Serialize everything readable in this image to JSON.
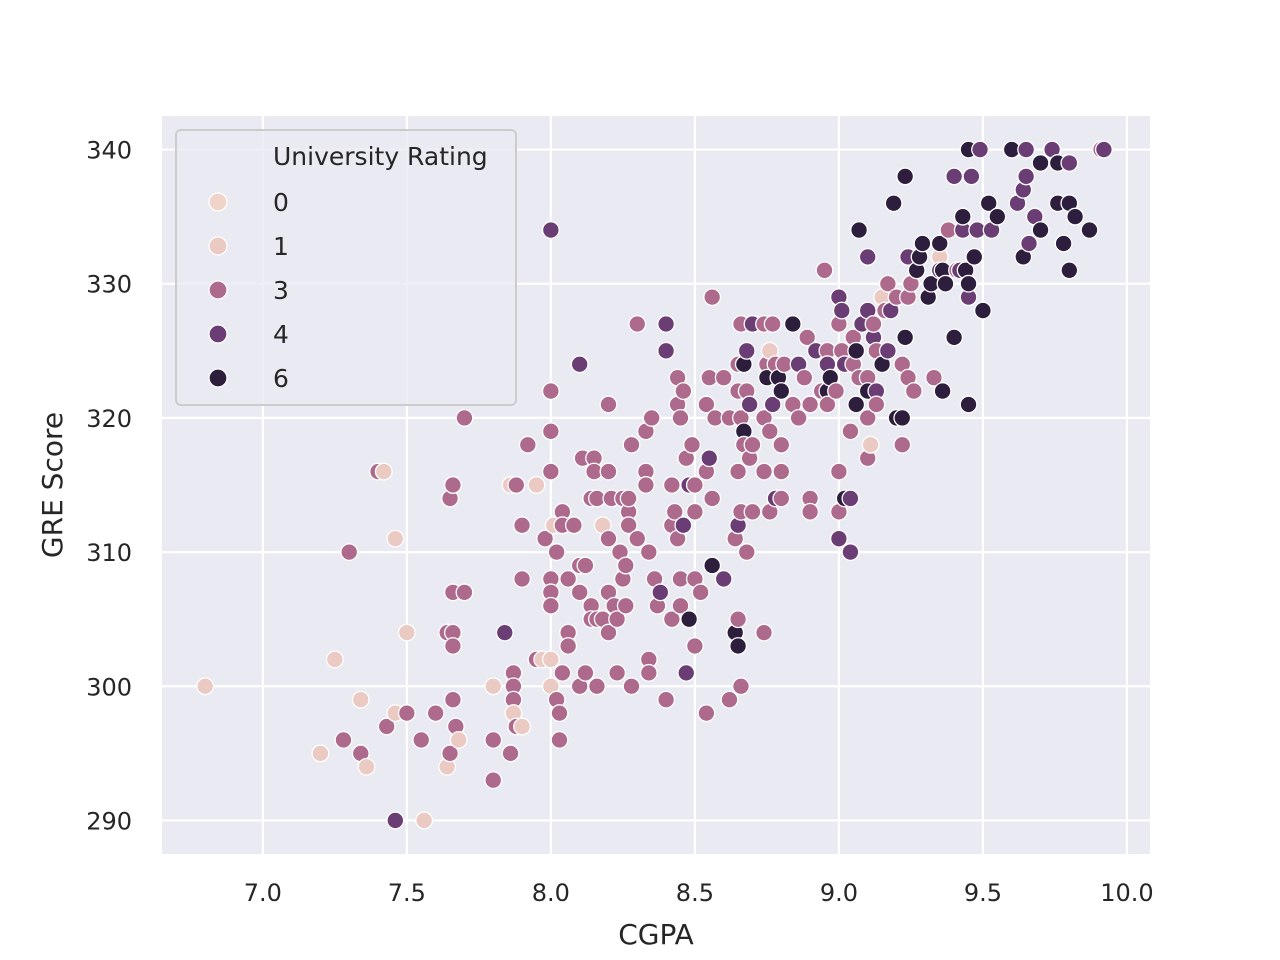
{
  "chart_data": {
    "type": "scatter",
    "xlabel": "CGPA",
    "ylabel": "GRE Score",
    "xlim": [
      6.65,
      10.08
    ],
    "ylim": [
      287.5,
      342.5
    ],
    "xticks": [
      7.0,
      7.5,
      8.0,
      8.5,
      9.0,
      9.5,
      10.0
    ],
    "xtick_labels": [
      "7.0",
      "7.5",
      "8.0",
      "8.5",
      "9.0",
      "9.5",
      "10.0"
    ],
    "yticks": [
      290,
      300,
      310,
      320,
      330,
      340
    ],
    "ytick_labels": [
      "290",
      "300",
      "310",
      "320",
      "330",
      "340"
    ],
    "grid": true,
    "background": "#eaeaf2",
    "legend": {
      "title": "University Rating",
      "placement": "upper-left",
      "entries": [
        {
          "label": "0",
          "rating": 0,
          "color": "#f0d3c9"
        },
        {
          "label": "1",
          "rating": 1,
          "color": "#eacac2"
        },
        {
          "label": "3",
          "rating": 3,
          "color": "#ad6a8d"
        },
        {
          "label": "4",
          "rating": 4,
          "color": "#6a3d74"
        },
        {
          "label": "6",
          "rating": 6,
          "color": "#2d1e3e"
        }
      ]
    },
    "points": [
      [
        6.8,
        300,
        1
      ],
      [
        7.2,
        295,
        1
      ],
      [
        7.25,
        302,
        1
      ],
      [
        7.28,
        296,
        3
      ],
      [
        7.3,
        310,
        3
      ],
      [
        7.34,
        295,
        3
      ],
      [
        7.34,
        299,
        1
      ],
      [
        7.36,
        294,
        1
      ],
      [
        7.4,
        316,
        3
      ],
      [
        7.42,
        316,
        1
      ],
      [
        7.43,
        297,
        3
      ],
      [
        7.46,
        298,
        1
      ],
      [
        7.46,
        311,
        1
      ],
      [
        7.46,
        290,
        4
      ],
      [
        7.5,
        304,
        1
      ],
      [
        7.5,
        298,
        3
      ],
      [
        7.55,
        296,
        3
      ],
      [
        7.56,
        290,
        1
      ],
      [
        7.6,
        298,
        3
      ],
      [
        7.64,
        304,
        3
      ],
      [
        7.64,
        294,
        1
      ],
      [
        7.65,
        314,
        3
      ],
      [
        7.65,
        295,
        3
      ],
      [
        7.66,
        315,
        3
      ],
      [
        7.66,
        307,
        3
      ],
      [
        7.66,
        304,
        3
      ],
      [
        7.66,
        303,
        3
      ],
      [
        7.66,
        299,
        3
      ],
      [
        7.67,
        297,
        3
      ],
      [
        7.68,
        296,
        1
      ],
      [
        7.7,
        307,
        3
      ],
      [
        7.7,
        320,
        3
      ],
      [
        7.8,
        300,
        1
      ],
      [
        7.8,
        293,
        3
      ],
      [
        7.8,
        296,
        3
      ],
      [
        7.84,
        304,
        4
      ],
      [
        7.86,
        315,
        1
      ],
      [
        7.86,
        295,
        3
      ],
      [
        7.87,
        301,
        3
      ],
      [
        7.87,
        300,
        3
      ],
      [
        7.87,
        299,
        3
      ],
      [
        7.87,
        298,
        1
      ],
      [
        7.88,
        297,
        3
      ],
      [
        7.88,
        315,
        3
      ],
      [
        7.9,
        312,
        3
      ],
      [
        7.9,
        308,
        3
      ],
      [
        7.9,
        297,
        1
      ],
      [
        7.92,
        318,
        3
      ],
      [
        7.95,
        315,
        1
      ],
      [
        7.95,
        302,
        3
      ],
      [
        7.97,
        302,
        1
      ],
      [
        7.98,
        311,
        3
      ],
      [
        8.0,
        334,
        4
      ],
      [
        8.0,
        322,
        3
      ],
      [
        8.0,
        319,
        3
      ],
      [
        8.0,
        316,
        3
      ],
      [
        8.0,
        308,
        3
      ],
      [
        8.0,
        307,
        3
      ],
      [
        8.0,
        306,
        3
      ],
      [
        8.0,
        302,
        1
      ],
      [
        8.0,
        300,
        1
      ],
      [
        8.01,
        312,
        1
      ],
      [
        8.02,
        310,
        3
      ],
      [
        8.02,
        299,
        3
      ],
      [
        8.03,
        298,
        3
      ],
      [
        8.03,
        296,
        3
      ],
      [
        8.04,
        313,
        3
      ],
      [
        8.04,
        312,
        3
      ],
      [
        8.04,
        301,
        3
      ],
      [
        8.06,
        304,
        3
      ],
      [
        8.06,
        303,
        3
      ],
      [
        8.06,
        308,
        3
      ],
      [
        8.08,
        312,
        3
      ],
      [
        8.1,
        324,
        4
      ],
      [
        8.1,
        309,
        3
      ],
      [
        8.1,
        307,
        3
      ],
      [
        8.1,
        300,
        3
      ],
      [
        8.11,
        317,
        3
      ],
      [
        8.12,
        309,
        3
      ],
      [
        8.12,
        301,
        3
      ],
      [
        8.14,
        314,
        3
      ],
      [
        8.14,
        306,
        3
      ],
      [
        8.14,
        305,
        3
      ],
      [
        8.15,
        317,
        3
      ],
      [
        8.15,
        316,
        3
      ],
      [
        8.16,
        314,
        3
      ],
      [
        8.16,
        305,
        3
      ],
      [
        8.16,
        300,
        3
      ],
      [
        8.18,
        312,
        1
      ],
      [
        8.18,
        305,
        3
      ],
      [
        8.2,
        321,
        3
      ],
      [
        8.2,
        316,
        3
      ],
      [
        8.2,
        311,
        3
      ],
      [
        8.2,
        307,
        3
      ],
      [
        8.2,
        304,
        3
      ],
      [
        8.21,
        314,
        3
      ],
      [
        8.22,
        306,
        3
      ],
      [
        8.23,
        301,
        3
      ],
      [
        8.23,
        305,
        3
      ],
      [
        8.24,
        310,
        3
      ],
      [
        8.25,
        308,
        3
      ],
      [
        8.25,
        314,
        3
      ],
      [
        8.26,
        309,
        3
      ],
      [
        8.26,
        306,
        3
      ],
      [
        8.27,
        313,
        3
      ],
      [
        8.27,
        312,
        3
      ],
      [
        8.27,
        314,
        3
      ],
      [
        8.28,
        318,
        3
      ],
      [
        8.28,
        300,
        3
      ],
      [
        8.3,
        327,
        3
      ],
      [
        8.3,
        311,
        3
      ],
      [
        8.33,
        316,
        3
      ],
      [
        8.33,
        319,
        3
      ],
      [
        8.33,
        315,
        3
      ],
      [
        8.34,
        310,
        3
      ],
      [
        8.34,
        302,
        3
      ],
      [
        8.34,
        301,
        3
      ],
      [
        8.35,
        320,
        3
      ],
      [
        8.36,
        308,
        3
      ],
      [
        8.37,
        306,
        3
      ],
      [
        8.38,
        307,
        4
      ],
      [
        8.4,
        327,
        4
      ],
      [
        8.4,
        325,
        4
      ],
      [
        8.4,
        299,
        3
      ],
      [
        8.42,
        315,
        3
      ],
      [
        8.42,
        312,
        3
      ],
      [
        8.42,
        305,
        3
      ],
      [
        8.43,
        313,
        3
      ],
      [
        8.44,
        323,
        3
      ],
      [
        8.44,
        321,
        3
      ],
      [
        8.44,
        311,
        3
      ],
      [
        8.45,
        320,
        3
      ],
      [
        8.45,
        306,
        3
      ],
      [
        8.45,
        308,
        3
      ],
      [
        8.46,
        322,
        3
      ],
      [
        8.46,
        312,
        4
      ],
      [
        8.47,
        317,
        3
      ],
      [
        8.47,
        301,
        4
      ],
      [
        8.48,
        305,
        6
      ],
      [
        8.48,
        315,
        4
      ],
      [
        8.49,
        318,
        3
      ],
      [
        8.5,
        313,
        3
      ],
      [
        8.5,
        308,
        3
      ],
      [
        8.5,
        303,
        3
      ],
      [
        8.5,
        315,
        3
      ],
      [
        8.52,
        307,
        3
      ],
      [
        8.54,
        321,
        3
      ],
      [
        8.54,
        316,
        3
      ],
      [
        8.54,
        298,
        3
      ],
      [
        8.55,
        323,
        3
      ],
      [
        8.55,
        317,
        4
      ],
      [
        8.56,
        329,
        3
      ],
      [
        8.56,
        314,
        3
      ],
      [
        8.56,
        309,
        6
      ],
      [
        8.57,
        320,
        3
      ],
      [
        8.6,
        323,
        3
      ],
      [
        8.6,
        308,
        4
      ],
      [
        8.62,
        320,
        3
      ],
      [
        8.62,
        299,
        3
      ],
      [
        8.64,
        304,
        6
      ],
      [
        8.64,
        311,
        3
      ],
      [
        8.65,
        324,
        3
      ],
      [
        8.65,
        322,
        3
      ],
      [
        8.65,
        316,
        3
      ],
      [
        8.65,
        312,
        4
      ],
      [
        8.65,
        305,
        3
      ],
      [
        8.65,
        303,
        6
      ],
      [
        8.66,
        327,
        3
      ],
      [
        8.66,
        320,
        3
      ],
      [
        8.66,
        313,
        3
      ],
      [
        8.66,
        300,
        3
      ],
      [
        8.67,
        324,
        6
      ],
      [
        8.67,
        319,
        6
      ],
      [
        8.67,
        318,
        3
      ],
      [
        8.68,
        325,
        4
      ],
      [
        8.68,
        322,
        3
      ],
      [
        8.68,
        310,
        3
      ],
      [
        8.69,
        321,
        4
      ],
      [
        8.69,
        317,
        3
      ],
      [
        8.7,
        313,
        3
      ],
      [
        8.7,
        327,
        4
      ],
      [
        8.7,
        318,
        3
      ],
      [
        8.74,
        327,
        3
      ],
      [
        8.74,
        320,
        3
      ],
      [
        8.74,
        316,
        3
      ],
      [
        8.74,
        304,
        3
      ],
      [
        8.75,
        324,
        3
      ],
      [
        8.75,
        323,
        6
      ],
      [
        8.76,
        325,
        1
      ],
      [
        8.76,
        313,
        3
      ],
      [
        8.76,
        319,
        3
      ],
      [
        8.77,
        327,
        3
      ],
      [
        8.77,
        321,
        4
      ],
      [
        8.78,
        314,
        4
      ],
      [
        8.78,
        324,
        3
      ],
      [
        8.79,
        323,
        6
      ],
      [
        8.8,
        322,
        6
      ],
      [
        8.8,
        318,
        3
      ],
      [
        8.8,
        316,
        3
      ],
      [
        8.8,
        314,
        3
      ],
      [
        8.81,
        324,
        3
      ],
      [
        8.84,
        327,
        6
      ],
      [
        8.84,
        321,
        3
      ],
      [
        8.86,
        320,
        3
      ],
      [
        8.86,
        324,
        4
      ],
      [
        8.88,
        323,
        3
      ],
      [
        8.89,
        326,
        3
      ],
      [
        8.9,
        321,
        3
      ],
      [
        8.9,
        314,
        3
      ],
      [
        8.9,
        313,
        3
      ],
      [
        8.92,
        325,
        4
      ],
      [
        8.94,
        322,
        3
      ],
      [
        8.95,
        331,
        3
      ],
      [
        8.96,
        325,
        3
      ],
      [
        8.96,
        322,
        6
      ],
      [
        8.96,
        321,
        3
      ],
      [
        8.96,
        324,
        4
      ],
      [
        8.97,
        323,
        6
      ],
      [
        8.99,
        322,
        3
      ],
      [
        9.0,
        327,
        3
      ],
      [
        9.0,
        329,
        4
      ],
      [
        9.0,
        316,
        3
      ],
      [
        9.0,
        313,
        3
      ],
      [
        9.0,
        311,
        4
      ],
      [
        9.01,
        328,
        4
      ],
      [
        9.01,
        325,
        3
      ],
      [
        9.02,
        324,
        4
      ],
      [
        9.02,
        314,
        6
      ],
      [
        9.04,
        314,
        4
      ],
      [
        9.04,
        310,
        4
      ],
      [
        9.04,
        319,
        3
      ],
      [
        9.05,
        324,
        3
      ],
      [
        9.05,
        326,
        3
      ],
      [
        9.06,
        325,
        6
      ],
      [
        9.06,
        321,
        6
      ],
      [
        9.07,
        334,
        6
      ],
      [
        9.07,
        323,
        3
      ],
      [
        9.08,
        327,
        4
      ],
      [
        9.1,
        332,
        4
      ],
      [
        9.1,
        328,
        4
      ],
      [
        9.1,
        323,
        3
      ],
      [
        9.1,
        322,
        6
      ],
      [
        9.1,
        320,
        3
      ],
      [
        9.1,
        317,
        3
      ],
      [
        9.11,
        318,
        1
      ],
      [
        9.12,
        326,
        4
      ],
      [
        9.12,
        327,
        3
      ],
      [
        9.13,
        325,
        3
      ],
      [
        9.13,
        322,
        4
      ],
      [
        9.13,
        321,
        3
      ],
      [
        9.15,
        324,
        6
      ],
      [
        9.15,
        329,
        1
      ],
      [
        9.16,
        328,
        3
      ],
      [
        9.17,
        330,
        3
      ],
      [
        9.17,
        325,
        4
      ],
      [
        9.18,
        328,
        4
      ],
      [
        9.19,
        336,
        6
      ],
      [
        9.2,
        329,
        3
      ],
      [
        9.2,
        320,
        6
      ],
      [
        9.22,
        320,
        6
      ],
      [
        9.22,
        318,
        3
      ],
      [
        9.22,
        324,
        3
      ],
      [
        9.23,
        338,
        6
      ],
      [
        9.23,
        326,
        6
      ],
      [
        9.24,
        323,
        3
      ],
      [
        9.24,
        332,
        4
      ],
      [
        9.24,
        329,
        3
      ],
      [
        9.25,
        330,
        3
      ],
      [
        9.26,
        322,
        3
      ],
      [
        9.27,
        331,
        6
      ],
      [
        9.28,
        332,
        6
      ],
      [
        9.29,
        333,
        6
      ],
      [
        9.31,
        329,
        6
      ],
      [
        9.32,
        330,
        6
      ],
      [
        9.33,
        323,
        3
      ],
      [
        9.35,
        332,
        1
      ],
      [
        9.35,
        331,
        4
      ],
      [
        9.35,
        333,
        6
      ],
      [
        9.36,
        331,
        6
      ],
      [
        9.36,
        322,
        6
      ],
      [
        9.37,
        330,
        6
      ],
      [
        9.38,
        334,
        3
      ],
      [
        9.4,
        338,
        4
      ],
      [
        9.4,
        326,
        6
      ],
      [
        9.41,
        331,
        3
      ],
      [
        9.42,
        331,
        4
      ],
      [
        9.43,
        334,
        4
      ],
      [
        9.43,
        335,
        6
      ],
      [
        9.44,
        331,
        6
      ],
      [
        9.45,
        340,
        6
      ],
      [
        9.45,
        321,
        6
      ],
      [
        9.45,
        329,
        4
      ],
      [
        9.45,
        330,
        6
      ],
      [
        9.46,
        338,
        4
      ],
      [
        9.47,
        332,
        6
      ],
      [
        9.48,
        334,
        4
      ],
      [
        9.49,
        340,
        4
      ],
      [
        9.5,
        328,
        6
      ],
      [
        9.52,
        336,
        6
      ],
      [
        9.53,
        334,
        4
      ],
      [
        9.55,
        335,
        6
      ],
      [
        9.6,
        340,
        6
      ],
      [
        9.62,
        336,
        4
      ],
      [
        9.64,
        332,
        6
      ],
      [
        9.64,
        337,
        4
      ],
      [
        9.65,
        338,
        4
      ],
      [
        9.65,
        340,
        4
      ],
      [
        9.66,
        333,
        4
      ],
      [
        9.68,
        335,
        4
      ],
      [
        9.7,
        339,
        6
      ],
      [
        9.7,
        334,
        6
      ],
      [
        9.74,
        340,
        4
      ],
      [
        9.76,
        336,
        6
      ],
      [
        9.76,
        339,
        6
      ],
      [
        9.78,
        333,
        6
      ],
      [
        9.8,
        339,
        4
      ],
      [
        9.8,
        336,
        6
      ],
      [
        9.8,
        331,
        6
      ],
      [
        9.82,
        335,
        6
      ],
      [
        9.87,
        334,
        6
      ],
      [
        9.91,
        340,
        3
      ],
      [
        9.92,
        340,
        4
      ]
    ]
  }
}
